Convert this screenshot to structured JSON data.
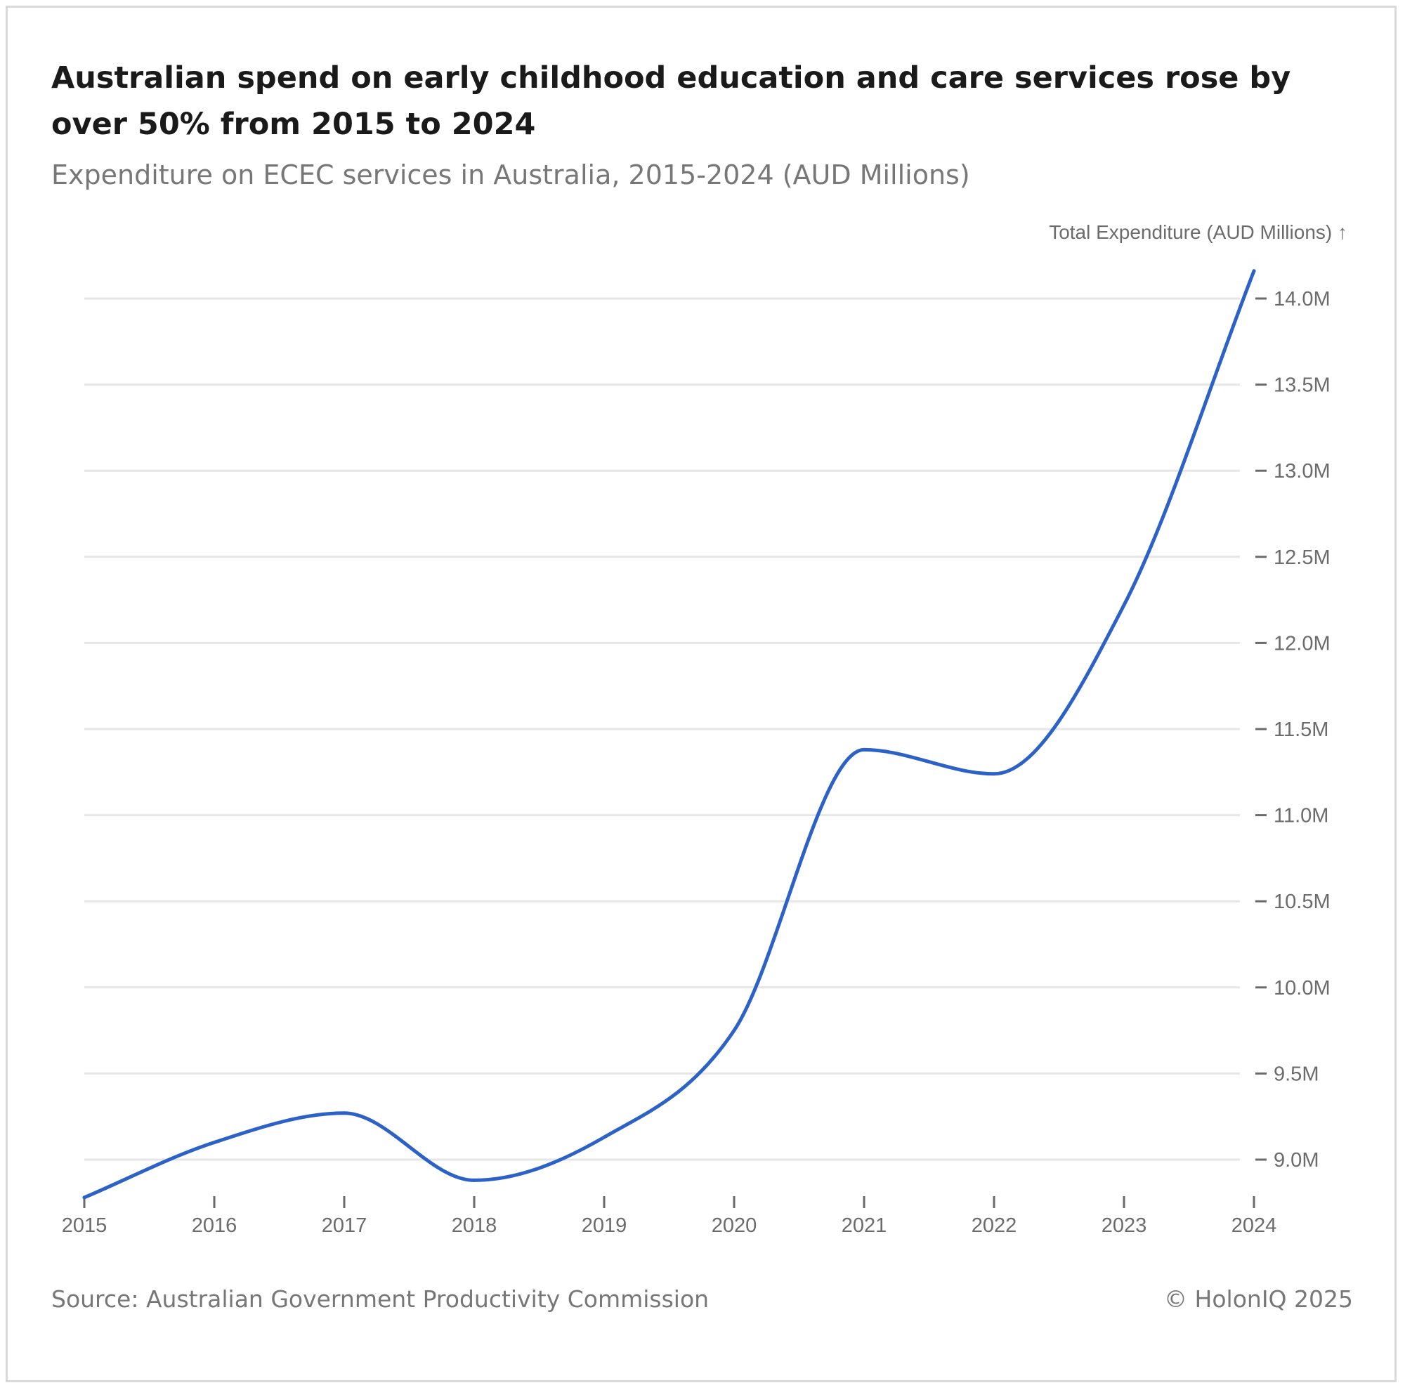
{
  "title": "Australian spend on early childhood education and care services rose by over 50% from 2015 to 2024",
  "subtitle": "Expenditure on ECEC services in Australia, 2015-2024 (AUD Millions)",
  "source": "Source: Australian Government Productivity Commission",
  "credit": "© HolonIQ 2025",
  "colors": {
    "line": "#2c62c7",
    "grid": "#e6e6e6",
    "axis": "#6b6b6b"
  },
  "chart_data": {
    "type": "line",
    "ylabel": "Total Expenditure (AUD Millions) ↑",
    "x": [
      "2015",
      "2016",
      "2017",
      "2018",
      "2019",
      "2020",
      "2021",
      "2022",
      "2023",
      "2024"
    ],
    "series": [
      {
        "values": [
          8.78,
          9.1,
          9.27,
          8.88,
          9.13,
          9.75,
          11.38,
          11.24,
          12.22,
          14.16
        ]
      }
    ],
    "ylim": [
      8.79,
      14.0
    ],
    "yticks": [
      9.0,
      9.5,
      10.0,
      10.5,
      11.0,
      11.5,
      12.0,
      12.5,
      13.0,
      13.5,
      14.0
    ],
    "ytick_labels": [
      "9.0M",
      "9.5M",
      "10.0M",
      "10.5M",
      "11.0M",
      "11.5M",
      "12.0M",
      "12.5M",
      "13.0M",
      "13.5M",
      "14.0M"
    ],
    "y_axis_position": "right",
    "grid": true,
    "legend": "none"
  }
}
